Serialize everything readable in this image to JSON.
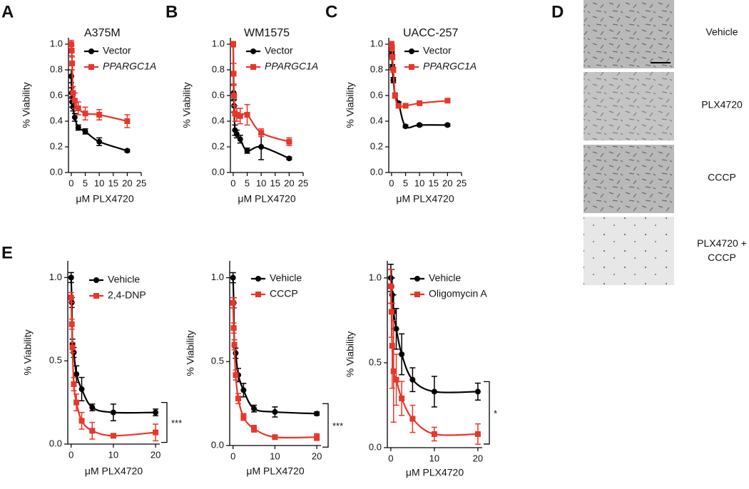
{
  "panel_letters": [
    "A",
    "B",
    "C",
    "D",
    "E"
  ],
  "panel_d": {
    "labels": [
      "Vehicle",
      "PLX4720",
      "CCCP",
      "PLX4720 + CCCP"
    ]
  },
  "chart_data": [
    {
      "type": "scatter",
      "title": "A375M",
      "x_label": "μM PLX4720",
      "y_label": "% Viability",
      "xlim": [
        -1,
        25
      ],
      "ylim": [
        0,
        1.05
      ],
      "xticks": [
        0,
        5,
        10,
        15,
        20,
        25
      ],
      "yticks": [
        {
          "value": 0,
          "label": "0.0"
        },
        0.2,
        0.4,
        0.6,
        0.8,
        {
          "value": 1,
          "label": "1.0"
        }
      ],
      "x": [
        0,
        0.16,
        0.31,
        0.63,
        1.25,
        2.5,
        5,
        10,
        20
      ],
      "series": [
        {
          "name": "Vector",
          "color": "#000000",
          "marker": "circle",
          "values": [
            0.75,
            0.62,
            0.55,
            0.51,
            0.43,
            0.35,
            0.32,
            0.24,
            0.17
          ],
          "errors": [
            0.05,
            0.04,
            0.04,
            0.03,
            0.03,
            0.02,
            0.02,
            0.03,
            0.01
          ]
        },
        {
          "name": "PPARGC1A",
          "italic": true,
          "color": "#e8362b",
          "marker": "square",
          "values": [
            1.0,
            0.95,
            0.85,
            0.62,
            0.56,
            0.5,
            0.46,
            0.45,
            0.4
          ],
          "errors": [
            0.03,
            0.04,
            0.05,
            0.05,
            0.06,
            0.05,
            0.05,
            0.04,
            0.05
          ]
        }
      ]
    },
    {
      "type": "scatter",
      "title": "WM1575",
      "x_label": "μM PLX4720",
      "y_label": "% Viability",
      "xlim": [
        -1,
        25
      ],
      "ylim": [
        0,
        1.05
      ],
      "xticks": [
        0,
        5,
        10,
        15,
        20,
        25
      ],
      "yticks": [
        {
          "value": 0,
          "label": "0.0"
        },
        0.2,
        0.4,
        0.6,
        0.8,
        {
          "value": 1,
          "label": "1.0"
        }
      ],
      "x": [
        0,
        0.16,
        0.31,
        0.63,
        1.25,
        2.5,
        5,
        10,
        20
      ],
      "series": [
        {
          "name": "Vector",
          "color": "#000000",
          "marker": "circle",
          "values": [
            1.0,
            0.62,
            0.52,
            0.33,
            0.3,
            0.26,
            0.17,
            0.2,
            0.11
          ],
          "errors": [
            0.02,
            0.06,
            0.05,
            0.04,
            0.03,
            0.03,
            0.02,
            0.1,
            0.01
          ]
        },
        {
          "name": "PPARGC1A",
          "italic": true,
          "color": "#e8362b",
          "marker": "square",
          "values": [
            1.0,
            0.77,
            0.6,
            0.46,
            0.45,
            0.44,
            0.45,
            0.31,
            0.24
          ],
          "errors": [
            0.02,
            0.08,
            0.08,
            0.06,
            0.05,
            0.06,
            0.08,
            0.03,
            0.03
          ]
        }
      ]
    },
    {
      "type": "scatter",
      "title": "UACC-257",
      "x_label": "μM PLX4720",
      "y_label": "% Viability",
      "xlim": [
        -1,
        25
      ],
      "ylim": [
        0,
        1.05
      ],
      "xticks": [
        0,
        5,
        10,
        15,
        20,
        25
      ],
      "yticks": [
        {
          "value": 0,
          "label": "0.0"
        },
        0.2,
        0.4,
        0.6,
        0.8,
        {
          "value": 1,
          "label": "1.0"
        }
      ],
      "x": [
        0,
        0.16,
        0.31,
        0.63,
        1.25,
        2.5,
        5,
        10,
        20
      ],
      "series": [
        {
          "name": "Vector",
          "color": "#000000",
          "marker": "circle",
          "values": [
            1.0,
            0.92,
            0.82,
            0.72,
            0.6,
            0.54,
            0.36,
            0.37,
            0.37
          ],
          "errors": [
            0.02,
            0.02,
            0.02,
            0.02,
            0.02,
            0.01,
            0.01,
            0.01,
            0.01
          ]
        },
        {
          "name": "PPARGC1A",
          "italic": true,
          "color": "#e8362b",
          "marker": "square",
          "values": [
            1.0,
            0.97,
            0.9,
            0.8,
            0.6,
            0.52,
            0.52,
            0.54,
            0.56
          ],
          "errors": [
            0.02,
            0.02,
            0.02,
            0.02,
            0.02,
            0.01,
            0.01,
            0.01,
            0.01
          ]
        }
      ]
    },
    {
      "type": "scatter",
      "x_label": "μM PLX4720",
      "y_label": "% Viability",
      "annotation": "***",
      "xlim": [
        -0.8,
        21
      ],
      "ylim": [
        0,
        1.1
      ],
      "xticks": [
        0,
        10,
        20
      ],
      "yticks": [
        {
          "value": 0,
          "label": "0.0"
        },
        0.5,
        {
          "value": 1,
          "label": "1.0"
        }
      ],
      "x": [
        0,
        0.16,
        0.31,
        0.63,
        1.25,
        2.5,
        5,
        10,
        20
      ],
      "series": [
        {
          "name": "Vehicle",
          "color": "#000000",
          "marker": "circle",
          "values": [
            1.0,
            0.85,
            0.6,
            0.55,
            0.42,
            0.33,
            0.22,
            0.19,
            0.19
          ],
          "errors": [
            0.03,
            0.03,
            0.03,
            0.03,
            0.05,
            0.07,
            0.02,
            0.05,
            0.02
          ]
        },
        {
          "name": "2,4-DNP",
          "color": "#e8362b",
          "marker": "square",
          "values": [
            0.88,
            0.72,
            0.58,
            0.36,
            0.25,
            0.14,
            0.08,
            0.05,
            0.07
          ],
          "errors": [
            0.03,
            0.03,
            0.03,
            0.04,
            0.05,
            0.05,
            0.05,
            0.01,
            0.05
          ]
        }
      ]
    },
    {
      "type": "scatter",
      "x_label": "μM PLX4720",
      "y_label": "% Viability",
      "annotation": "***",
      "xlim": [
        -0.8,
        21
      ],
      "ylim": [
        0,
        1.1
      ],
      "xticks": [
        0,
        10,
        20
      ],
      "yticks": [
        {
          "value": 0,
          "label": "0.0"
        },
        0.5,
        {
          "value": 1,
          "label": "1.0"
        }
      ],
      "x": [
        0,
        0.16,
        0.31,
        0.63,
        1.25,
        2.5,
        5,
        10,
        20
      ],
      "series": [
        {
          "name": "Vehicle",
          "color": "#000000",
          "marker": "circle",
          "values": [
            1.0,
            0.85,
            0.6,
            0.55,
            0.42,
            0.33,
            0.22,
            0.2,
            0.19
          ],
          "errors": [
            0.03,
            0.03,
            0.03,
            0.03,
            0.04,
            0.04,
            0.02,
            0.03,
            0.01
          ]
        },
        {
          "name": "CCCP",
          "color": "#e8362b",
          "marker": "square",
          "values": [
            0.85,
            0.7,
            0.6,
            0.42,
            0.28,
            0.17,
            0.1,
            0.05,
            0.05
          ],
          "errors": [
            0.03,
            0.03,
            0.03,
            0.03,
            0.03,
            0.02,
            0.02,
            0.01,
            0.02
          ]
        }
      ]
    },
    {
      "type": "scatter",
      "x_label": "μM PLX4720",
      "y_label": "% Viability",
      "annotation": "*",
      "xlim": [
        -0.8,
        21
      ],
      "ylim": [
        0,
        1.1
      ],
      "xticks": [
        0,
        10,
        20
      ],
      "yticks": [
        {
          "value": 0,
          "label": "0.0"
        },
        0.5,
        {
          "value": 1,
          "label": "1.0"
        }
      ],
      "x": [
        0,
        0.16,
        0.31,
        0.63,
        1.25,
        2.5,
        5,
        10,
        20
      ],
      "series": [
        {
          "name": "Vehicle",
          "color": "#000000",
          "marker": "circle",
          "values": [
            1.0,
            0.95,
            0.9,
            0.8,
            0.7,
            0.55,
            0.4,
            0.33,
            0.33
          ],
          "errors": [
            0.08,
            0.1,
            0.1,
            0.1,
            0.12,
            0.12,
            0.07,
            0.09,
            0.05
          ]
        },
        {
          "name": "Oligomycin A",
          "color": "#e8362b",
          "marker": "square",
          "values": [
            0.95,
            0.8,
            0.6,
            0.45,
            0.4,
            0.29,
            0.17,
            0.08,
            0.08
          ],
          "errors": [
            0.1,
            0.15,
            0.25,
            0.3,
            0.15,
            0.1,
            0.08,
            0.04,
            0.06
          ]
        }
      ]
    }
  ]
}
